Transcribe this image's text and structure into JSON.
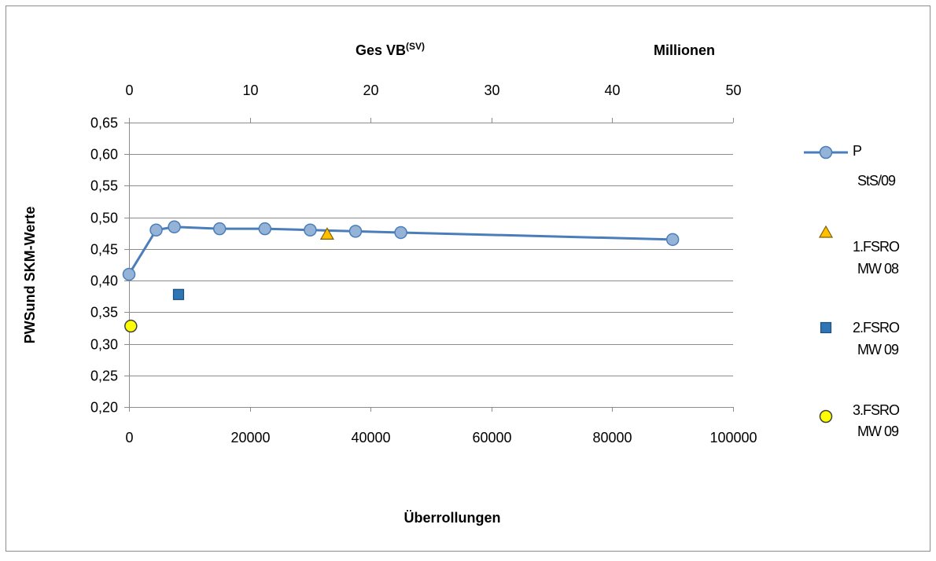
{
  "chart_data": {
    "type": "scatter",
    "xlabel": "Überrollungen",
    "ylabel": "PWSund SKM-Werte",
    "x2label_main": "Ges VB",
    "x2label_sup": "(SV)",
    "x2unit": "Millionen",
    "xlim": [
      0,
      100000
    ],
    "ylim": [
      0.2,
      0.65
    ],
    "x2lim": [
      0,
      50
    ],
    "x_ticks": [
      0,
      20000,
      40000,
      60000,
      80000,
      100000
    ],
    "x_tick_labels": [
      "0",
      "20000",
      "40000",
      "60000",
      "80000",
      "100000"
    ],
    "x2_ticks": [
      0,
      10,
      20,
      30,
      40,
      50
    ],
    "x2_tick_labels": [
      "0",
      "10",
      "20",
      "30",
      "40",
      "50"
    ],
    "y_ticks": [
      0.2,
      0.25,
      0.3,
      0.35,
      0.4,
      0.45,
      0.5,
      0.55,
      0.6,
      0.65
    ],
    "y_tick_labels": [
      "0,20",
      "0,25",
      "0,30",
      "0,35",
      "0,40",
      "0,45",
      "0,50",
      "0,55",
      "0,60",
      "0,65"
    ],
    "grid": "horizontal",
    "legend_position": "right",
    "series": [
      {
        "name_lines": [
          "P",
          "StS/09"
        ],
        "kind": "line-marker",
        "marker": "circle",
        "color": "#4a7ebb",
        "fill": "#95b3d7",
        "x": [
          0,
          4500,
          7500,
          15000,
          22500,
          30000,
          37500,
          45000,
          90000
        ],
        "y": [
          0.41,
          0.48,
          0.485,
          0.482,
          0.482,
          0.48,
          0.478,
          0.476,
          0.465
        ]
      },
      {
        "name_lines": [
          "1.FSRO",
          "MW 08"
        ],
        "kind": "marker",
        "marker": "triangle",
        "color": "#7f6000",
        "fill": "#ffc000",
        "x": [
          32800
        ],
        "y": [
          0.473
        ]
      },
      {
        "name_lines": [
          "2.FSRO",
          " MW 09"
        ],
        "kind": "marker",
        "marker": "square",
        "color": "#1f4e79",
        "fill": "#2e75b6",
        "x": [
          8200
        ],
        "y": [
          0.378
        ]
      },
      {
        "name_lines": [
          "3.FSRO",
          "MW 09"
        ],
        "kind": "marker",
        "marker": "circle",
        "color": "#404040",
        "fill": "#ffff00",
        "x": [
          300
        ],
        "y": [
          0.328
        ]
      }
    ]
  }
}
